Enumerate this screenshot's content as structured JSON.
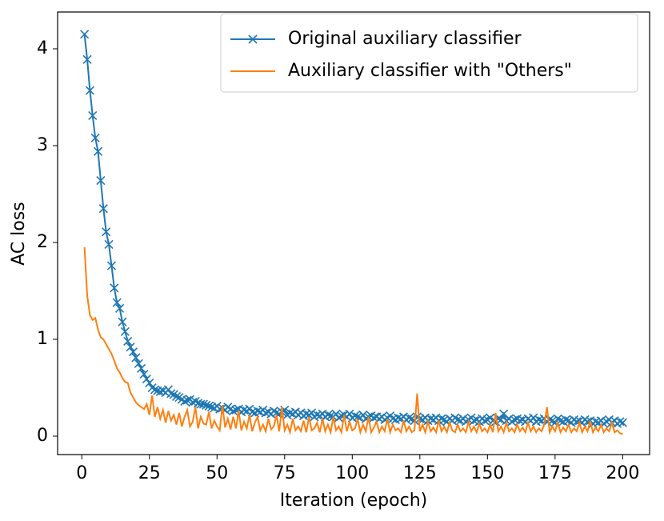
{
  "chart_data": {
    "type": "line",
    "xlabel": "Iteration (epoch)",
    "ylabel": "AC loss",
    "x": [
      1,
      2,
      3,
      4,
      5,
      6,
      7,
      8,
      9,
      10,
      11,
      12,
      13,
      14,
      15,
      16,
      17,
      18,
      19,
      20,
      21,
      22,
      23,
      24,
      25,
      26,
      27,
      28,
      29,
      30,
      31,
      32,
      33,
      34,
      35,
      36,
      37,
      38,
      39,
      40,
      41,
      42,
      43,
      44,
      45,
      46,
      47,
      48,
      49,
      50,
      51,
      52,
      53,
      54,
      55,
      56,
      57,
      58,
      59,
      60,
      61,
      62,
      63,
      64,
      65,
      66,
      67,
      68,
      69,
      70,
      71,
      72,
      73,
      74,
      75,
      76,
      77,
      78,
      79,
      80,
      81,
      82,
      83,
      84,
      85,
      86,
      87,
      88,
      89,
      90,
      91,
      92,
      93,
      94,
      95,
      96,
      97,
      98,
      99,
      100,
      101,
      102,
      103,
      104,
      105,
      106,
      107,
      108,
      109,
      110,
      111,
      112,
      113,
      114,
      115,
      116,
      117,
      118,
      119,
      120,
      121,
      122,
      123,
      124,
      125,
      126,
      127,
      128,
      129,
      130,
      131,
      132,
      133,
      134,
      135,
      136,
      137,
      138,
      139,
      140,
      141,
      142,
      143,
      144,
      145,
      146,
      147,
      148,
      149,
      150,
      151,
      152,
      153,
      154,
      155,
      156,
      157,
      158,
      159,
      160,
      161,
      162,
      163,
      164,
      165,
      166,
      167,
      168,
      169,
      170,
      171,
      172,
      173,
      174,
      175,
      176,
      177,
      178,
      179,
      180,
      181,
      182,
      183,
      184,
      185,
      186,
      187,
      188,
      189,
      190,
      191,
      192,
      193,
      194,
      195,
      196,
      197,
      198,
      199,
      200
    ],
    "series": [
      {
        "name": "Original auxiliary classifier",
        "color": "#1f77b4",
        "marker": "x",
        "values": [
          4.15,
          3.89,
          3.57,
          3.31,
          3.08,
          2.94,
          2.64,
          2.35,
          2.11,
          1.98,
          1.76,
          1.53,
          1.38,
          1.32,
          1.18,
          1.08,
          0.98,
          0.92,
          0.87,
          0.81,
          0.75,
          0.7,
          0.64,
          0.59,
          0.55,
          0.5,
          0.48,
          0.47,
          0.46,
          0.47,
          0.45,
          0.48,
          0.44,
          0.43,
          0.41,
          0.4,
          0.38,
          0.36,
          0.37,
          0.38,
          0.35,
          0.36,
          0.34,
          0.33,
          0.33,
          0.32,
          0.31,
          0.3,
          0.29,
          0.31,
          0.28,
          0.29,
          0.27,
          0.3,
          0.28,
          0.26,
          0.27,
          0.28,
          0.25,
          0.27,
          0.26,
          0.28,
          0.25,
          0.24,
          0.26,
          0.25,
          0.27,
          0.24,
          0.25,
          0.23,
          0.26,
          0.24,
          0.23,
          0.25,
          0.27,
          0.22,
          0.24,
          0.23,
          0.25,
          0.22,
          0.24,
          0.21,
          0.23,
          0.22,
          0.24,
          0.2,
          0.22,
          0.21,
          0.23,
          0.2,
          0.22,
          0.21,
          0.2,
          0.23,
          0.19,
          0.21,
          0.22,
          0.2,
          0.23,
          0.19,
          0.21,
          0.2,
          0.19,
          0.22,
          0.18,
          0.2,
          0.21,
          0.19,
          0.2,
          0.18,
          0.2,
          0.17,
          0.19,
          0.21,
          0.18,
          0.17,
          0.19,
          0.18,
          0.2,
          0.17,
          0.19,
          0.18,
          0.16,
          0.2,
          0.18,
          0.17,
          0.19,
          0.16,
          0.18,
          0.17,
          0.19,
          0.16,
          0.18,
          0.17,
          0.15,
          0.18,
          0.16,
          0.19,
          0.17,
          0.16,
          0.18,
          0.15,
          0.17,
          0.19,
          0.16,
          0.17,
          0.15,
          0.18,
          0.16,
          0.17,
          0.19,
          0.16,
          0.15,
          0.18,
          0.17,
          0.23,
          0.16,
          0.18,
          0.15,
          0.17,
          0.18,
          0.16,
          0.17,
          0.15,
          0.18,
          0.16,
          0.19,
          0.15,
          0.17,
          0.16,
          0.18,
          0.15,
          0.17,
          0.16,
          0.14,
          0.18,
          0.16,
          0.15,
          0.17,
          0.16,
          0.14,
          0.17,
          0.15,
          0.16,
          0.14,
          0.17,
          0.15,
          0.16,
          0.13,
          0.15,
          0.14,
          0.16,
          0.13,
          0.15,
          0.17,
          0.14,
          0.16,
          0.13,
          0.15,
          0.14
        ]
      },
      {
        "name": "Auxiliary classifier with \"Others\"",
        "color": "#ff7f0e",
        "values": [
          1.95,
          1.45,
          1.25,
          1.2,
          1.22,
          1.1,
          1.02,
          1.0,
          0.95,
          0.9,
          0.85,
          0.78,
          0.7,
          0.66,
          0.6,
          0.56,
          0.55,
          0.45,
          0.4,
          0.35,
          0.32,
          0.3,
          0.28,
          0.33,
          0.22,
          0.42,
          0.2,
          0.3,
          0.18,
          0.27,
          0.14,
          0.26,
          0.16,
          0.22,
          0.12,
          0.24,
          0.1,
          0.2,
          0.27,
          0.1,
          0.15,
          0.3,
          0.08,
          0.2,
          0.13,
          0.12,
          0.25,
          0.08,
          0.16,
          0.1,
          0.06,
          0.32,
          0.09,
          0.18,
          0.07,
          0.2,
          0.08,
          0.26,
          0.06,
          0.15,
          0.08,
          0.22,
          0.05,
          0.14,
          0.2,
          0.06,
          0.12,
          0.05,
          0.18,
          0.07,
          0.1,
          0.22,
          0.05,
          0.3,
          0.06,
          0.12,
          0.04,
          0.18,
          0.06,
          0.1,
          0.05,
          0.16,
          0.04,
          0.2,
          0.06,
          0.08,
          0.14,
          0.04,
          0.18,
          0.05,
          0.12,
          0.04,
          0.2,
          0.06,
          0.1,
          0.04,
          0.22,
          0.05,
          0.15,
          0.06,
          0.08,
          0.18,
          0.04,
          0.12,
          0.05,
          0.2,
          0.04,
          0.09,
          0.15,
          0.04,
          0.1,
          0.05,
          0.18,
          0.04,
          0.12,
          0.06,
          0.08,
          0.04,
          0.16,
          0.05,
          0.1,
          0.04,
          0.06,
          0.44,
          0.05,
          0.12,
          0.04,
          0.15,
          0.05,
          0.09,
          0.04,
          0.16,
          0.05,
          0.1,
          0.04,
          0.14,
          0.06,
          0.04,
          0.12,
          0.05,
          0.08,
          0.04,
          0.15,
          0.05,
          0.1,
          0.04,
          0.13,
          0.05,
          0.08,
          0.04,
          0.12,
          0.04,
          0.24,
          0.05,
          0.1,
          0.04,
          0.14,
          0.05,
          0.08,
          0.04,
          0.12,
          0.05,
          0.09,
          0.04,
          0.14,
          0.05,
          0.1,
          0.04,
          0.08,
          0.05,
          0.12,
          0.3,
          0.04,
          0.1,
          0.05,
          0.14,
          0.04,
          0.09,
          0.05,
          0.12,
          0.04,
          0.08,
          0.05,
          0.14,
          0.04,
          0.1,
          0.05,
          0.16,
          0.04,
          0.09,
          0.05,
          0.12,
          0.04,
          0.08,
          0.05,
          0.14,
          0.04,
          0.06,
          0.03,
          0.02
        ]
      }
    ],
    "xlim": [
      -8.95,
      209.95
    ],
    "xticks": [
      0,
      25,
      50,
      75,
      100,
      125,
      150,
      175,
      200
    ],
    "ylim": [
      -0.19,
      4.38
    ],
    "yticks": [
      0,
      1,
      2,
      3,
      4
    ],
    "legend": "upper right",
    "grid": false
  }
}
